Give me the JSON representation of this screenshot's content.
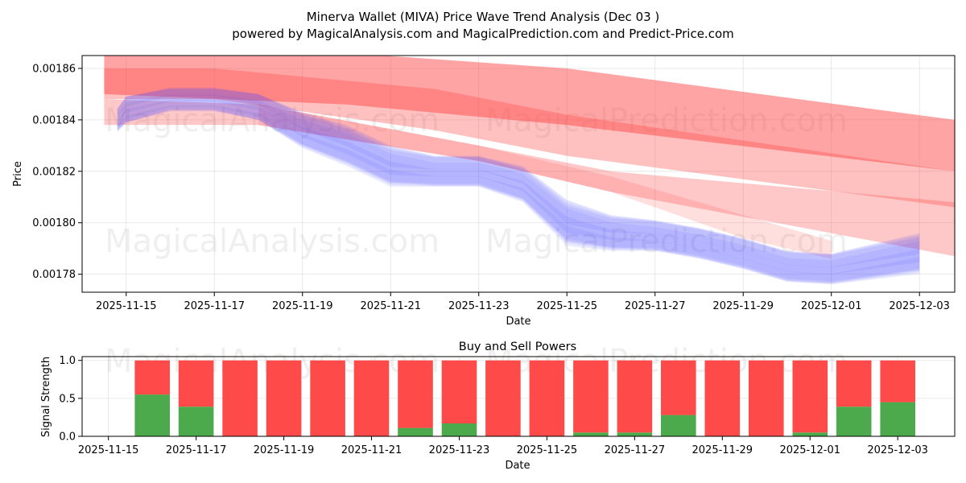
{
  "title": "Minerva Wallet (MIVA) Price Wave Trend Analysis (Dec 03 )",
  "subtitle": "powered by MagicalAnalysis.com and MagicalPrediction.com and Predict-Price.com",
  "watermarks": [
    "MagicalAnalysis.com",
    "MagicalPrediction.com"
  ],
  "colors": {
    "buy": "#4caa4c",
    "sell": "#ff4a4a",
    "prediction": "#ff4a4a",
    "history": "#4a4aff"
  },
  "chart_data": [
    {
      "type": "area",
      "name": "price-wave",
      "xlabel": "Date",
      "ylabel": "Price",
      "ylim": [
        0.001773,
        0.001865
      ],
      "xlim": [
        "2025-11-14",
        "2025-12-03.8"
      ],
      "x_ticks": [
        "2025-11-15",
        "2025-11-17",
        "2025-11-19",
        "2025-11-21",
        "2025-11-23",
        "2025-11-25",
        "2025-11-27",
        "2025-11-29",
        "2025-12-01",
        "2025-12-03"
      ],
      "y_ticks": [
        "0.00186",
        "0.00184",
        "0.00182",
        "0.00180",
        "0.00178"
      ],
      "grid": true,
      "history_band": {
        "dates": [
          "2025-11-14.8",
          "2025-11-15",
          "2025-11-16",
          "2025-11-17",
          "2025-11-18",
          "2025-11-19",
          "2025-11-20",
          "2025-11-21",
          "2025-11-22",
          "2025-11-23",
          "2025-11-24",
          "2025-11-25",
          "2025-11-26",
          "2025-11-27",
          "2025-11-28",
          "2025-11-29",
          "2025-11-30",
          "2025-12-01",
          "2025-12-02",
          "2025-12-03"
        ],
        "center": [
          0.00184,
          0.001844,
          0.001848,
          0.001848,
          0.001845,
          0.001836,
          0.00183,
          0.001822,
          0.00182,
          0.00182,
          0.001815,
          0.0018,
          0.001796,
          0.001795,
          0.001792,
          0.001788,
          0.001783,
          0.001782,
          0.001785,
          0.001788
        ],
        "spread": [
          4e-06,
          5e-06,
          4e-06,
          4e-06,
          5e-06,
          7e-06,
          8e-06,
          8e-06,
          6e-06,
          6e-06,
          7e-06,
          9e-06,
          7e-06,
          6e-06,
          6e-06,
          6e-06,
          6e-06,
          6e-06,
          7e-06,
          8e-06
        ],
        "layers": 7
      },
      "prediction_bands": [
        {
          "dates": [
            "2025-11-14.5",
            "2025-11-20",
            "2025-11-25",
            "2025-12-03.8"
          ],
          "upper": [
            0.001866,
            0.001866,
            0.00186,
            0.00184
          ],
          "lower": [
            0.00185,
            0.001846,
            0.001838,
            0.00182
          ],
          "opacity": 0.5
        },
        {
          "dates": [
            "2025-11-14.5",
            "2025-11-17",
            "2025-11-22",
            "2025-11-25",
            "2025-12-03.8"
          ],
          "upper": [
            0.00186,
            0.00186,
            0.001852,
            0.001842,
            0.00182
          ],
          "lower": [
            0.001848,
            0.001848,
            0.001836,
            0.001826,
            0.001806
          ],
          "opacity": 0.35
        },
        {
          "dates": [
            "2025-11-14.5",
            "2025-11-18",
            "2025-11-23",
            "2025-11-26",
            "2025-12-03.8"
          ],
          "upper": [
            0.001848,
            0.001846,
            0.00183,
            0.00182,
            0.001808
          ],
          "lower": [
            0.001838,
            0.001838,
            0.001824,
            0.001812,
            0.001787
          ],
          "opacity": 0.3
        },
        {
          "dates": [
            "2025-11-18",
            "2025-11-23",
            "2025-11-26",
            "2025-11-29",
            "2025-12-01"
          ],
          "upper": [
            0.001846,
            0.00183,
            0.001818,
            0.001803,
            0.001793
          ],
          "lower": [
            0.001838,
            0.001824,
            0.001812,
            0.001794,
            0.001786
          ],
          "opacity": 0.18
        }
      ]
    },
    {
      "type": "bar",
      "name": "buy-sell-powers",
      "title": "Buy and Sell Powers",
      "xlabel": "Date",
      "ylabel": "Signal Strength",
      "ylim": [
        0,
        1.05
      ],
      "xlim": [
        "2025-11-14.4",
        "2025-12-04.3"
      ],
      "x_ticks": [
        "2025-11-15",
        "2025-11-17",
        "2025-11-19",
        "2025-11-21",
        "2025-11-23",
        "2025-11-25",
        "2025-11-27",
        "2025-11-29",
        "2025-12-01",
        "2025-12-03"
      ],
      "y_ticks": [
        "0.0",
        "0.5",
        "1.0"
      ],
      "grid": true,
      "categories": [
        "2025-11-16",
        "2025-11-17",
        "2025-11-18",
        "2025-11-19",
        "2025-11-20",
        "2025-11-21",
        "2025-11-22",
        "2025-11-23",
        "2025-11-24",
        "2025-11-25",
        "2025-11-26",
        "2025-11-27",
        "2025-11-28",
        "2025-11-29",
        "2025-11-30",
        "2025-12-01",
        "2025-12-02",
        "2025-12-03"
      ],
      "series": [
        {
          "name": "Buy",
          "values": [
            0.55,
            0.39,
            0.0,
            0.0,
            0.0,
            0.0,
            0.11,
            0.17,
            0.0,
            0.0,
            0.05,
            0.05,
            0.28,
            0.0,
            0.0,
            0.05,
            0.39,
            0.45
          ]
        },
        {
          "name": "Sell",
          "values": [
            0.45,
            0.61,
            1.0,
            1.0,
            1.0,
            1.0,
            0.89,
            0.83,
            1.0,
            1.0,
            0.95,
            0.95,
            0.72,
            1.0,
            1.0,
            0.95,
            0.61,
            0.55
          ]
        }
      ]
    }
  ]
}
